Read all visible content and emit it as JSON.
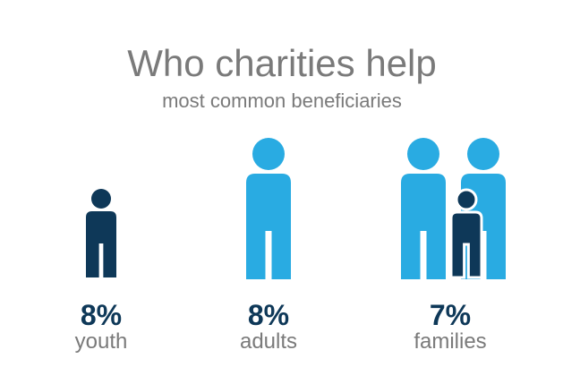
{
  "header": {
    "title": "Who charities help",
    "subtitle": "most common beneficiaries"
  },
  "items": [
    {
      "percent": "8%",
      "label": "youth"
    },
    {
      "percent": "8%",
      "label": "adults"
    },
    {
      "percent": "7%",
      "label": "families"
    }
  ]
}
